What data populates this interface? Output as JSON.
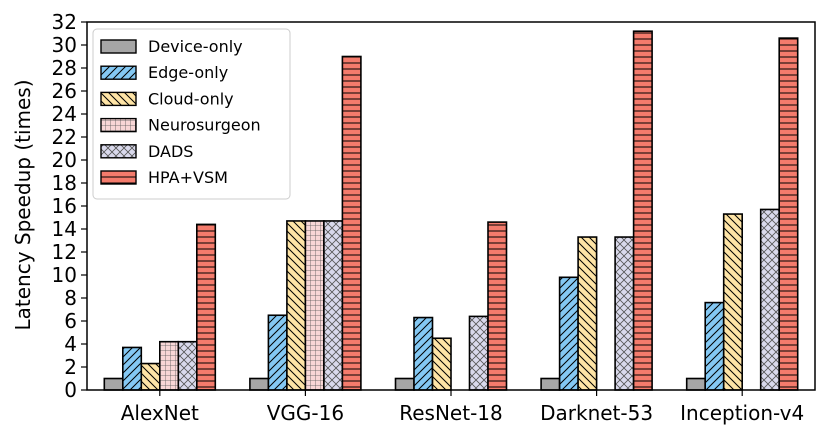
{
  "chart_data": {
    "type": "bar",
    "title": "",
    "xlabel": "",
    "ylabel": "Latency Speedup (times)",
    "ylim": [
      0,
      32
    ],
    "yticks": [
      0,
      2,
      4,
      6,
      8,
      10,
      12,
      14,
      16,
      18,
      20,
      22,
      24,
      26,
      28,
      30,
      32
    ],
    "categories": [
      "AlexNet",
      "VGG-16",
      "ResNet-18",
      "Darknet-53",
      "Inception-v4"
    ],
    "legend_position": "top-left",
    "series": [
      {
        "name": "Device-only",
        "values": [
          1,
          1,
          1,
          1,
          1
        ],
        "color": "#a6a6a6",
        "hatch": "none"
      },
      {
        "name": "Edge-only",
        "values": [
          3.7,
          6.5,
          6.3,
          9.8,
          7.6
        ],
        "color": "#84c8f3",
        "hatch": "forward"
      },
      {
        "name": "Cloud-only",
        "values": [
          2.3,
          14.7,
          4.5,
          13.3,
          15.3
        ],
        "color": "#fee4a6",
        "hatch": "back"
      },
      {
        "name": "Neurosurgeon",
        "values": [
          4.2,
          14.7,
          0,
          0,
          0
        ],
        "color": "#f8d6d6",
        "hatch": "grid"
      },
      {
        "name": "DADS",
        "values": [
          4.2,
          14.7,
          6.4,
          13.3,
          15.7
        ],
        "color": "#d9d9ec",
        "hatch": "cross"
      },
      {
        "name": "HPA+VSM",
        "values": [
          14.4,
          29.0,
          14.6,
          31.2,
          30.6
        ],
        "color": "#f47b6c",
        "hatch": "horizontal"
      }
    ]
  }
}
